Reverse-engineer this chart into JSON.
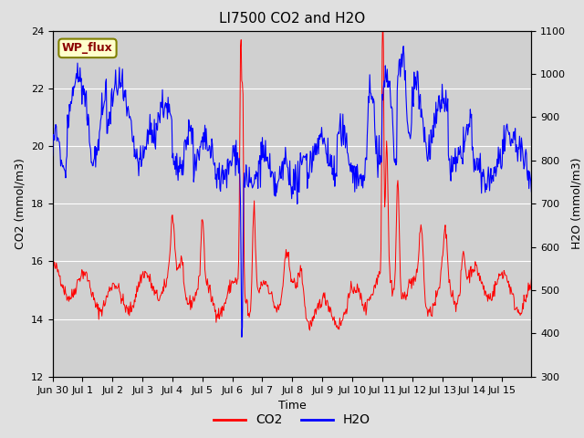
{
  "title": "LI7500 CO2 and H2O",
  "xlabel": "Time",
  "ylabel_left": "CO2 (mmol/m3)",
  "ylabel_right": "H2O (mmol/m3)",
  "ylim_left": [
    12,
    24
  ],
  "ylim_right": [
    300,
    1100
  ],
  "yticks_left": [
    12,
    14,
    16,
    18,
    20,
    22,
    24
  ],
  "yticks_right": [
    300,
    400,
    500,
    600,
    700,
    800,
    900,
    1000,
    1100
  ],
  "xtick_labels": [
    "Jun 30",
    "Jul 1",
    "Jul 2",
    "Jul 3",
    "Jul 4",
    "Jul 5",
    "Jul 6",
    "Jul 7",
    "Jul 8",
    "Jul 9",
    "Jul 10",
    "Jul 11",
    "Jul 12",
    "Jul 13",
    "Jul 14",
    "Jul 15"
  ],
  "legend_labels": [
    "CO2",
    "H2O"
  ],
  "legend_colors": [
    "red",
    "blue"
  ],
  "annotation_text": "WP_flux",
  "bg_color": "#e0e0e0",
  "inner_bg_color": "#d0d0d0",
  "title_fontsize": 11,
  "label_fontsize": 9,
  "tick_fontsize": 8
}
